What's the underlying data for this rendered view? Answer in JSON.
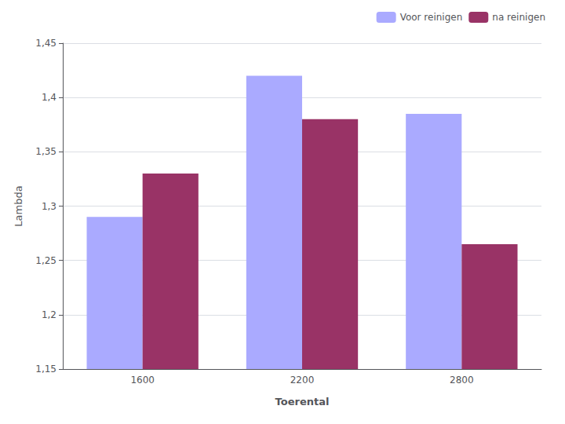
{
  "chart_data": {
    "type": "bar",
    "categories": [
      "1600",
      "2200",
      "2800"
    ],
    "series": [
      {
        "name": "Voor reinigen",
        "color": "#aaaaff",
        "values": [
          1.29,
          1.42,
          1.385
        ]
      },
      {
        "name": "na reinigen",
        "color": "#993366",
        "values": [
          1.33,
          1.38,
          1.265
        ]
      }
    ],
    "xlabel": "Toerental",
    "ylabel": "Lambda",
    "ylim": [
      1.15,
      1.45
    ],
    "yticks": [
      {
        "value": 1.15,
        "label": "1,15"
      },
      {
        "value": 1.2,
        "label": "1,2"
      },
      {
        "value": 1.25,
        "label": "1,25"
      },
      {
        "value": 1.3,
        "label": "1,3"
      },
      {
        "value": 1.35,
        "label": "1,35"
      },
      {
        "value": 1.4,
        "label": "1,4"
      },
      {
        "value": 1.45,
        "label": "1,45"
      }
    ],
    "grid": true,
    "legend": "upper right"
  }
}
